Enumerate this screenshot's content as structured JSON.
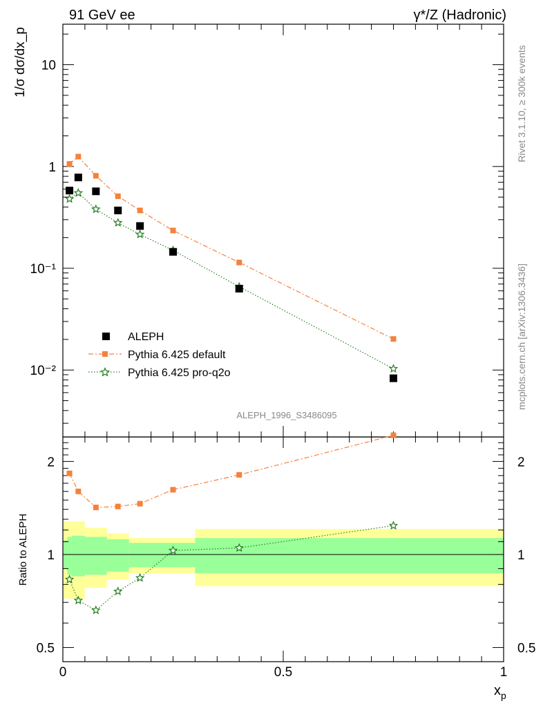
{
  "header": {
    "left_title": "91 GeV ee",
    "right_title": "γ*/Z (Hadronic)"
  },
  "side_text": {
    "rivet": "Rivet 3.1.10, ≥ 300k events",
    "mcplots": "mcplots.cern.ch [arXiv:1306.3436]"
  },
  "watermark": "ALEPH_1996_S3486095",
  "colors": {
    "data": "#000000",
    "default": "#f5813b",
    "proq2o": "#1f7d1f",
    "band_inner": "#99ff99",
    "band_outer": "#ffff99"
  },
  "chart_data": [
    {
      "type": "scatter",
      "ylabel": "1/σ dσ/dx_p",
      "yscale": "log",
      "ylim": [
        0.0022,
        25
      ],
      "xlim": [
        0,
        1
      ],
      "y_ticklabels": [
        "10⁻²",
        "10⁻¹",
        "1",
        "10"
      ],
      "legend_position": "lower-left",
      "x": [
        0.015,
        0.035,
        0.075,
        0.125,
        0.175,
        0.25,
        0.4,
        0.75
      ],
      "series": [
        {
          "name": "ALEPH",
          "style": "markers",
          "values": [
            0.58,
            0.78,
            0.57,
            0.37,
            0.26,
            0.145,
            0.063,
            0.0083
          ]
        },
        {
          "name": "Pythia 6.425 default",
          "style": "dashdot",
          "values": [
            1.06,
            1.25,
            0.81,
            0.51,
            0.37,
            0.235,
            0.114,
            0.0202
          ]
        },
        {
          "name": "Pythia 6.425 pro-q2o",
          "style": "dotted",
          "values": [
            0.48,
            0.55,
            0.38,
            0.28,
            0.215,
            0.15,
            0.066,
            0.0103
          ]
        }
      ]
    },
    {
      "type": "line",
      "ylabel": "Ratio to ALEPH",
      "xlabel": "x_p",
      "yscale": "log",
      "ylim": [
        0.45,
        2.4
      ],
      "xlim": [
        0,
        1
      ],
      "y_ticklabels": [
        "0.5",
        "1",
        "2"
      ],
      "x_ticklabels": [
        "0",
        "0.5",
        "1"
      ],
      "x": [
        0.015,
        0.035,
        0.075,
        0.125,
        0.175,
        0.25,
        0.4,
        0.75
      ],
      "series": [
        {
          "name": "Pythia 6.425 default",
          "values": [
            1.83,
            1.6,
            1.42,
            1.43,
            1.46,
            1.62,
            1.81,
            2.43
          ]
        },
        {
          "name": "Pythia 6.425 pro-q2o",
          "values": [
            0.83,
            0.71,
            0.66,
            0.76,
            0.84,
            1.03,
            1.05,
            1.24
          ]
        }
      ],
      "bands": {
        "edges": [
          0,
          0.01,
          0.02,
          0.05,
          0.1,
          0.15,
          0.2,
          0.3,
          0.5,
          1.0
        ],
        "inner_low": [
          0.9,
          0.86,
          0.85,
          0.86,
          0.88,
          0.91,
          0.91,
          0.87,
          0.87
        ],
        "inner_high": [
          1.11,
          1.14,
          1.15,
          1.14,
          1.12,
          1.09,
          1.09,
          1.13,
          1.13
        ],
        "outer_low": [
          0.72,
          0.72,
          0.72,
          0.78,
          0.83,
          0.87,
          0.87,
          0.79,
          0.79
        ],
        "outer_high": [
          1.28,
          1.28,
          1.28,
          1.22,
          1.17,
          1.13,
          1.13,
          1.21,
          1.21
        ]
      }
    }
  ]
}
